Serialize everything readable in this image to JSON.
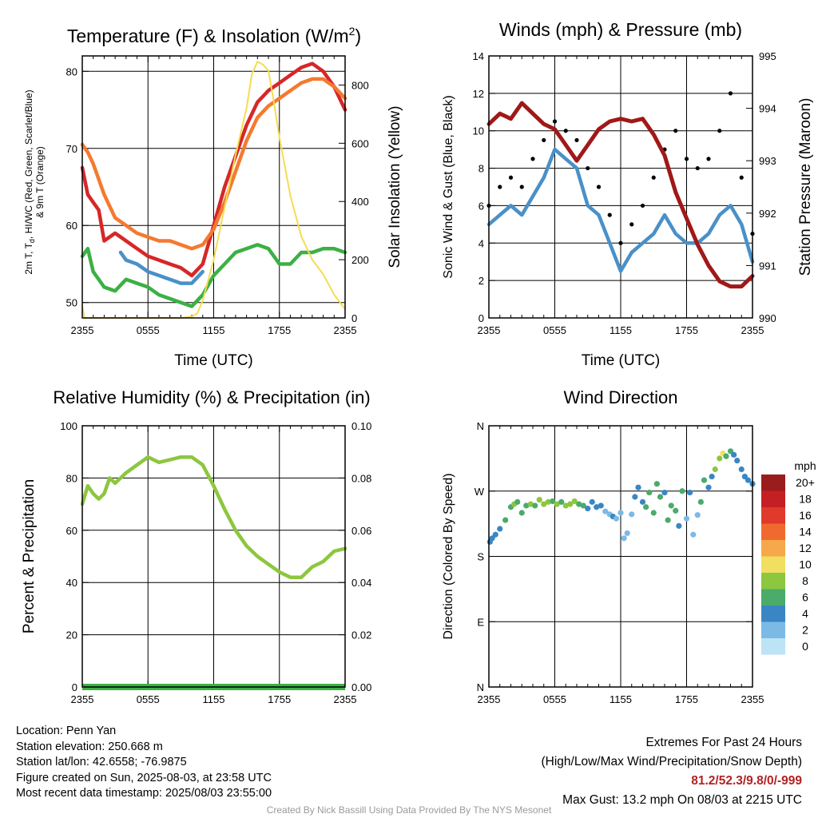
{
  "chart_data": [
    {
      "type": "line",
      "title": "Temperature (F) & Insolation (W/m²)",
      "xlabel": "Time (UTC)",
      "ylabel_left": "2m T, Td, HI/WC (Red, Green, Scarlet/Blue) & 9m T (Orange)",
      "ylabel_right": "Solar Insolation (Yellow)",
      "x_ticks": [
        "2355",
        "0555",
        "1155",
        "1755",
        "2355"
      ],
      "xlim_hours": [
        0,
        24
      ],
      "ylim_left": [
        48,
        82
      ],
      "yticks_left": [
        50,
        60,
        70,
        80
      ],
      "ylim_right": [
        0,
        900
      ],
      "yticks_right": [
        0,
        200,
        400,
        600,
        800
      ],
      "grid": true,
      "series": [
        {
          "color": "#d62728",
          "axis": "left",
          "x": [
            0,
            0.5,
            1,
            1.5,
            2,
            3,
            4,
            5,
            6,
            7,
            8,
            9,
            10,
            11,
            12,
            13,
            14,
            15,
            16,
            17,
            18,
            19,
            20,
            21,
            22,
            23,
            24
          ],
          "values": [
            67.5,
            64,
            63,
            62,
            58,
            59,
            58,
            57,
            56,
            55.5,
            55,
            54.5,
            53.5,
            55,
            60,
            65,
            69,
            73,
            76,
            77.5,
            78.5,
            79.5,
            80.5,
            81,
            80,
            78,
            75
          ]
        },
        {
          "color": "#f47a30",
          "axis": "left",
          "x": [
            0,
            0.5,
            1,
            1.5,
            2,
            3,
            4,
            5,
            6,
            7,
            8,
            9,
            10,
            11,
            12,
            13,
            14,
            15,
            16,
            17,
            18,
            19,
            20,
            21,
            22,
            23,
            24
          ],
          "values": [
            70.5,
            69.5,
            68,
            66,
            64,
            61,
            60,
            59,
            58.5,
            58,
            58,
            57.5,
            57,
            57.5,
            59.5,
            63,
            67,
            71,
            74,
            75.5,
            76.5,
            77.5,
            78.5,
            79,
            79,
            78,
            76.5
          ]
        },
        {
          "color": "#4a90c8",
          "axis": "left",
          "x": [
            3.5,
            4,
            5,
            6,
            7,
            8,
            9,
            10,
            11
          ],
          "values": [
            56.5,
            55.5,
            55,
            54,
            53.5,
            53,
            52.5,
            52.5,
            54
          ]
        },
        {
          "color": "#3cb044",
          "axis": "left",
          "x": [
            0,
            0.5,
            1,
            2,
            3,
            4,
            5,
            6,
            7,
            8,
            9,
            10,
            11,
            12,
            13,
            14,
            15,
            16,
            17,
            18,
            19,
            20,
            21,
            22,
            23,
            24
          ],
          "values": [
            56,
            57,
            54,
            52,
            51.5,
            53,
            52.5,
            52,
            51,
            50.5,
            50,
            49.5,
            51,
            53.5,
            55,
            56.5,
            57,
            57.5,
            57,
            55,
            55,
            56.5,
            56.5,
            57,
            57,
            56.5
          ]
        },
        {
          "color": "#f5dc50",
          "axis": "right",
          "x": [
            0,
            0.2,
            1,
            3,
            5,
            7,
            9,
            10,
            10.5,
            11,
            12,
            13,
            14,
            15,
            15.5,
            16,
            16.5,
            17,
            17.5,
            18,
            19,
            20,
            21,
            22,
            23,
            24
          ],
          "values": [
            40,
            0,
            0,
            0,
            0,
            0,
            0,
            5,
            15,
            60,
            200,
            380,
            560,
            720,
            840,
            880,
            870,
            850,
            740,
            620,
            420,
            280,
            200,
            150,
            80,
            30
          ]
        }
      ]
    },
    {
      "type": "line",
      "title": "Winds (mph) & Pressure (mb)",
      "xlabel": "Time (UTC)",
      "ylabel_left": "Sonic Wind & Gust (Blue, Black)",
      "ylabel_right": "Station Pressure (Maroon)",
      "x_ticks": [
        "2355",
        "0555",
        "1155",
        "1755",
        "2355"
      ],
      "xlim_hours": [
        0,
        24
      ],
      "ylim_left": [
        0,
        14
      ],
      "yticks_left": [
        0,
        2,
        4,
        6,
        8,
        10,
        12,
        14
      ],
      "ylim_right": [
        990,
        995
      ],
      "yticks_right": [
        990,
        991,
        992,
        993,
        994,
        995
      ],
      "grid": true,
      "series": [
        {
          "color": "#4a90c8",
          "axis": "left",
          "x": [
            0,
            1,
            2,
            3,
            4,
            5,
            6,
            7,
            8,
            9,
            10,
            11,
            12,
            13,
            14,
            15,
            16,
            17,
            18,
            19,
            20,
            21,
            22,
            23,
            24
          ],
          "values": [
            5,
            5.5,
            6,
            5.5,
            6.5,
            7.5,
            9,
            8.5,
            8,
            6,
            5.5,
            4,
            2.5,
            3.5,
            4,
            4.5,
            5.5,
            4.5,
            4,
            4,
            4.5,
            5.5,
            6,
            5,
            3
          ]
        },
        {
          "color": "#000000",
          "axis": "left",
          "style": "dots",
          "x": [
            0,
            1,
            2,
            3,
            4,
            5,
            6,
            7,
            8,
            9,
            10,
            11,
            12,
            13,
            14,
            15,
            16,
            17,
            18,
            19,
            20,
            21,
            22,
            23,
            24
          ],
          "values": [
            6,
            7,
            7.5,
            7,
            8.5,
            9.5,
            10.5,
            10,
            9.5,
            8,
            7,
            5.5,
            4,
            5,
            6,
            7.5,
            9,
            10,
            8.5,
            8,
            8.5,
            10,
            12,
            7.5,
            4.5
          ]
        },
        {
          "color": "#a01818",
          "axis": "right",
          "x": [
            0,
            1,
            2,
            3,
            4,
            5,
            6,
            7,
            8,
            9,
            10,
            11,
            12,
            13,
            14,
            15,
            16,
            17,
            18,
            19,
            20,
            21,
            22,
            23,
            24
          ],
          "values": [
            993.7,
            993.9,
            993.8,
            994.1,
            993.9,
            993.7,
            993.6,
            993.3,
            993,
            993.3,
            993.6,
            993.75,
            993.8,
            993.75,
            993.8,
            993.5,
            993.1,
            992.4,
            991.9,
            991.4,
            991,
            990.7,
            990.6,
            990.6,
            990.8
          ]
        }
      ]
    },
    {
      "type": "line",
      "title": "Relative Humidity (%) & Precipitation (in)",
      "xlabel": "",
      "ylabel_left": "Percent & Precipitation",
      "x_ticks": [
        "2355",
        "0555",
        "1155",
        "1755",
        "2355"
      ],
      "xlim_hours": [
        0,
        24
      ],
      "ylim_left": [
        0,
        100
      ],
      "yticks_left": [
        0,
        20,
        40,
        60,
        80,
        100
      ],
      "ylim_right": [
        0,
        0.1
      ],
      "yticks_right": [
        "0.00",
        "0.02",
        "0.04",
        "0.06",
        "0.08",
        "0.10"
      ],
      "grid": true,
      "series": [
        {
          "color": "#8dc63f",
          "axis": "left",
          "x": [
            0,
            0.5,
            1,
            1.5,
            2,
            2.5,
            3,
            4,
            5,
            6,
            7,
            8,
            9,
            10,
            11,
            12,
            13,
            14,
            15,
            16,
            17,
            18,
            19,
            20,
            21,
            22,
            23,
            24
          ],
          "values": [
            70,
            77,
            74,
            72,
            74,
            80,
            78,
            82,
            85,
            88,
            86,
            87,
            88,
            88,
            85,
            77,
            68,
            60,
            54,
            50,
            47,
            44,
            42,
            42,
            46,
            48,
            52,
            53
          ]
        },
        {
          "color": "#3cb044",
          "axis": "right",
          "x": [
            0,
            24
          ],
          "values": [
            0,
            0
          ]
        }
      ]
    },
    {
      "type": "scatter",
      "title": "Wind Direction",
      "xlabel": "",
      "ylabel_left": "Direction (Colored By Speed)",
      "x_ticks": [
        "2355",
        "0555",
        "1155",
        "1755",
        "2355"
      ],
      "xlim_hours": [
        0,
        24
      ],
      "ylim_deg": [
        0,
        360
      ],
      "ytick_labels": [
        "N",
        "E",
        "S",
        "W",
        "N"
      ],
      "grid": true,
      "colorbar": {
        "title": "mph",
        "labels": [
          "20+",
          "18",
          "16",
          "14",
          "12",
          "10",
          "8",
          "6",
          "4",
          "2",
          "0"
        ],
        "colors": [
          "#9b1c1c",
          "#c42024",
          "#e03a2c",
          "#f06a30",
          "#f6a84a",
          "#f0df60",
          "#8dc63f",
          "#4aab6a",
          "#3a86c4",
          "#7cbae6",
          "#bde3f7"
        ]
      },
      "points": {
        "x": [
          0.1,
          0.3,
          0.6,
          1,
          1.5,
          2,
          2.3,
          2.6,
          3,
          3.4,
          3.8,
          4.2,
          4.6,
          5,
          5.4,
          5.8,
          6.2,
          6.6,
          7,
          7.4,
          7.8,
          8.2,
          8.6,
          9,
          9.4,
          9.8,
          10.2,
          10.6,
          11,
          11.3,
          11.6,
          12,
          12.3,
          12.6,
          13,
          13.3,
          13.6,
          14,
          14.3,
          14.6,
          15,
          15.3,
          15.6,
          16,
          16.3,
          16.6,
          17,
          17.3,
          17.6,
          18,
          18.3,
          18.6,
          19,
          19.3,
          19.6,
          20,
          20.3,
          20.6,
          21,
          21.3,
          21.6,
          22,
          22.3,
          22.6,
          23,
          23.3,
          23.6,
          24
        ],
        "deg": [
          200,
          205,
          210,
          218,
          230,
          248,
          252,
          255,
          240,
          250,
          252,
          250,
          258,
          252,
          255,
          256,
          252,
          255,
          250,
          252,
          256,
          252,
          250,
          246,
          255,
          248,
          250,
          242,
          238,
          235,
          232,
          240,
          205,
          212,
          238,
          262,
          275,
          255,
          248,
          268,
          240,
          280,
          262,
          268,
          230,
          250,
          243,
          222,
          270,
          232,
          268,
          210,
          237,
          255,
          285,
          275,
          290,
          300,
          315,
          322,
          318,
          325,
          320,
          312,
          300,
          290,
          285,
          280
        ],
        "speed": [
          4,
          4,
          4,
          4,
          6,
          6,
          8,
          6,
          6,
          6,
          8,
          6,
          8,
          8,
          8,
          6,
          8,
          6,
          8,
          8,
          8,
          6,
          6,
          4,
          4,
          4,
          4,
          2,
          2,
          4,
          2,
          2,
          2,
          2,
          2,
          4,
          4,
          4,
          6,
          6,
          6,
          6,
          6,
          4,
          6,
          6,
          6,
          4,
          6,
          2,
          4,
          2,
          2,
          6,
          6,
          4,
          4,
          8,
          8,
          10,
          6,
          6,
          4,
          4,
          4,
          4,
          4,
          4
        ]
      }
    }
  ],
  "info": {
    "location": "Location: Penn Yan",
    "elevation": "Station elevation: 250.668 m",
    "latlon": "Station lat/lon: 42.6558; -76.9875",
    "created": "Figure created on Sun, 2025-08-03, at 23:58 UTC",
    "recent": "Most recent data timestamp: 2025/08/03 23:55:00"
  },
  "extremes": {
    "title": "Extremes For Past 24 Hours",
    "subtitle": "(High/Low/Max Wind/Precipitation/Snow Depth)",
    "values": "81.2/52.3/9.8/0/-999",
    "max_gust": "Max Gust: 13.2 mph On 08/03 at 2215 UTC"
  },
  "credit": "Created By Nick Bassill Using Data Provided By The NYS Mesonet"
}
